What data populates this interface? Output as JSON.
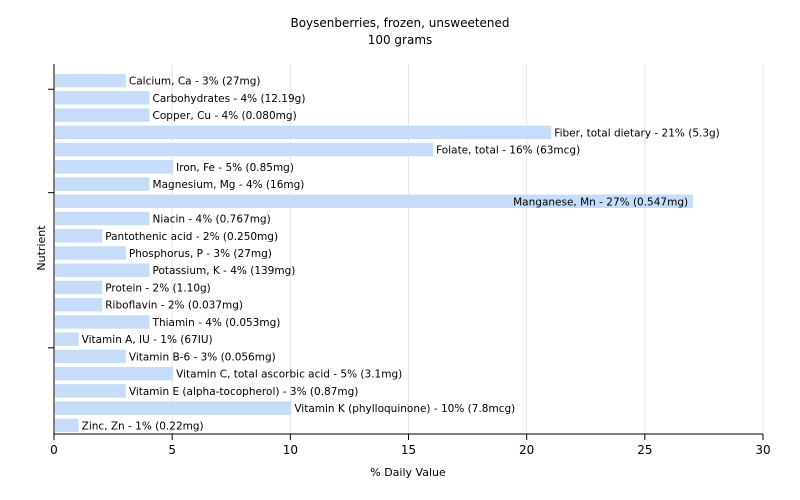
{
  "chart_data": {
    "type": "bar",
    "orientation": "horizontal",
    "title": "Boysenberries, frozen, unsweetened",
    "subtitle": "100 grams",
    "xlabel": "% Daily Value",
    "ylabel": "Nutrient",
    "xlim": [
      0,
      30
    ],
    "xticks": [
      0,
      5,
      10,
      15,
      20,
      25,
      30
    ],
    "grid": "vertical",
    "colors": {
      "bar": "#c6dcf8",
      "grid": "#e6e6e6",
      "axis": "#000000",
      "text": "#000000"
    },
    "categories": [
      "Calcium, Ca",
      "Carbohydrates",
      "Copper, Cu",
      "Fiber, total dietary",
      "Folate, total",
      "Iron, Fe",
      "Magnesium, Mg",
      "Manganese, Mn",
      "Niacin",
      "Pantothenic acid",
      "Phosphorus, P",
      "Potassium, K",
      "Protein",
      "Riboflavin",
      "Thiamin",
      "Vitamin A, IU",
      "Vitamin B-6",
      "Vitamin C, total ascorbic acid",
      "Vitamin E (alpha-tocopherol)",
      "Vitamin K (phylloquinone)",
      "Zinc, Zn"
    ],
    "values": [
      3,
      4,
      4,
      21,
      16,
      5,
      4,
      27,
      4,
      2,
      3,
      4,
      2,
      2,
      4,
      1,
      3,
      5,
      3,
      10,
      1
    ],
    "labels": [
      "Calcium, Ca - 3% (27mg)",
      "Carbohydrates - 4% (12.19g)",
      "Copper, Cu - 4% (0.080mg)",
      "Fiber, total dietary - 21% (5.3g)",
      "Folate, total - 16% (63mcg)",
      "Iron, Fe - 5% (0.85mg)",
      "Magnesium, Mg - 4% (16mg)",
      "Manganese, Mn - 27% (0.547mg)",
      "Niacin - 4% (0.767mg)",
      "Pantothenic acid - 2% (0.250mg)",
      "Phosphorus, P - 3% (27mg)",
      "Potassium, K - 4% (139mg)",
      "Protein - 2% (1.10g)",
      "Riboflavin - 2% (0.037mg)",
      "Thiamin - 4% (0.053mg)",
      "Vitamin A, IU - 1% (67IU)",
      "Vitamin B-6 - 3% (0.056mg)",
      "Vitamin C, total ascorbic acid - 5% (3.1mg)",
      "Vitamin E (alpha-tocopherol) - 3% (0.87mg)",
      "Vitamin K (phylloquinone) - 10% (7.8mcg)",
      "Zinc, Zn - 1% (0.22mg)"
    ]
  }
}
